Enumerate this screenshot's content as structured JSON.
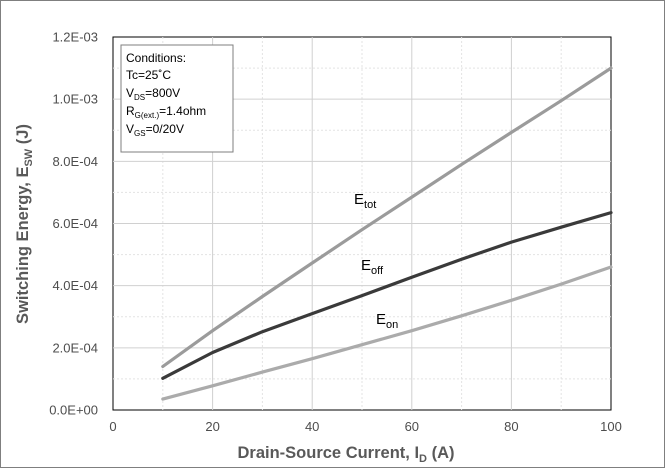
{
  "chart_data": {
    "type": "line",
    "xlabel": {
      "main": "Drain-Source Current, I",
      "sub": "D",
      "tail": " (A)"
    },
    "ylabel": {
      "main": "Switching Energy, E",
      "sub": "SW",
      "tail": " (J)"
    },
    "xlim": [
      0,
      100
    ],
    "ylim": [
      0,
      0.0012
    ],
    "x_ticks": [
      "0",
      "20",
      "40",
      "60",
      "80",
      "100"
    ],
    "y_ticks": [
      "0.0E+00",
      "2.0E-04",
      "4.0E-04",
      "6.0E-04",
      "8.0E-04",
      "1.0E-03",
      "1.2E-03"
    ],
    "grid": true,
    "series": [
      {
        "name": "Etot",
        "label_main": "E",
        "label_sub": "tot",
        "color": "#9b9b9b",
        "x": [
          10,
          20,
          30,
          40,
          50,
          60,
          70,
          80,
          90,
          100
        ],
        "y": [
          0.00014,
          0.000255,
          0.000365,
          0.000473,
          0.00058,
          0.000685,
          0.00079,
          0.000893,
          0.000995,
          0.0011
        ]
      },
      {
        "name": "Eoff",
        "label_main": "E",
        "label_sub": "off",
        "color": "#3a3a3a",
        "x": [
          10,
          20,
          30,
          40,
          50,
          60,
          70,
          80,
          90,
          100
        ],
        "y": [
          0.000102,
          0.000185,
          0.000252,
          0.00031,
          0.000368,
          0.000427,
          0.000485,
          0.00054,
          0.000588,
          0.000635
        ]
      },
      {
        "name": "Eon",
        "label_main": "E",
        "label_sub": "on",
        "color": "#ababab",
        "x": [
          10,
          20,
          30,
          40,
          50,
          60,
          70,
          80,
          90,
          100
        ],
        "y": [
          3.5e-05,
          7.8e-05,
          0.000122,
          0.000165,
          0.00021,
          0.000255,
          0.000303,
          0.000353,
          0.000405,
          0.00046
        ]
      }
    ],
    "conditions": {
      "title": "Conditions:",
      "tc": "Tc=25˚C",
      "vds": {
        "main": "V",
        "sub": "DS",
        "tail": "=800V"
      },
      "rg": {
        "main": "R",
        "sub": "G(ext.)",
        "tail": "=1.4ohm"
      },
      "vgs": {
        "main": "V",
        "sub": "GS",
        "tail": "=0/20V"
      }
    }
  }
}
